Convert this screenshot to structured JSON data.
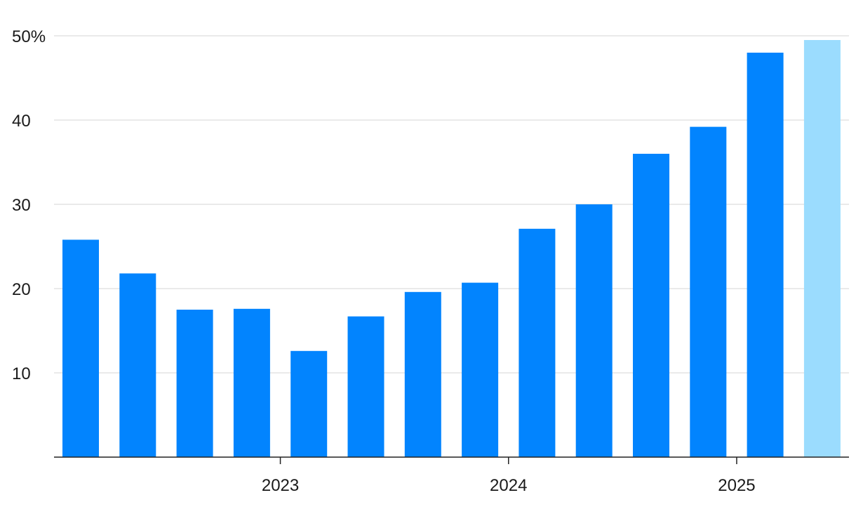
{
  "chart_data": {
    "type": "bar",
    "title": "",
    "xlabel": "",
    "ylabel": "",
    "ylim": [
      0,
      50
    ],
    "y_ticks": [
      {
        "value": 10,
        "label": "10"
      },
      {
        "value": 20,
        "label": "20"
      },
      {
        "value": 30,
        "label": "30"
      },
      {
        "value": 40,
        "label": "40"
      },
      {
        "value": 50,
        "label": "50%"
      }
    ],
    "x_ticks": [
      {
        "between_bars": [
          3,
          4
        ],
        "label": "2023"
      },
      {
        "between_bars": [
          7,
          8
        ],
        "label": "2024"
      },
      {
        "between_bars": [
          11,
          12
        ],
        "label": "2025"
      }
    ],
    "values": [
      25.8,
      21.8,
      17.5,
      17.6,
      12.6,
      16.7,
      19.6,
      20.7,
      27.1,
      30.0,
      36.0,
      39.2,
      48.0,
      49.5
    ],
    "bar_colors": [
      "#0284fe",
      "#0284fe",
      "#0284fe",
      "#0284fe",
      "#0284fe",
      "#0284fe",
      "#0284fe",
      "#0284fe",
      "#0284fe",
      "#0284fe",
      "#0284fe",
      "#0284fe",
      "#0284fe",
      "#9bdcfe"
    ],
    "grid": true,
    "legend": "none",
    "colors": {
      "bar": "#0284fe",
      "bar_highlight": "#9bdcfe",
      "grid": "#e3e3e3",
      "axis": "#222222",
      "text": "#1a1a1a"
    }
  }
}
